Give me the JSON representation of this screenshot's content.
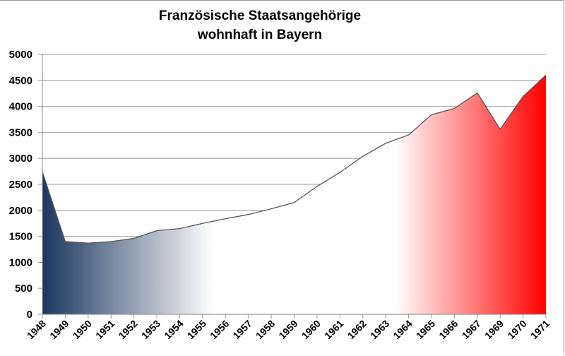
{
  "chart_data": {
    "type": "area",
    "title": "Französische Staatsangehörige",
    "subtitle": "wohnhaft in Bayern",
    "xlabel": "",
    "ylabel": "",
    "ylim": [
      0,
      5000
    ],
    "yticks": [
      0,
      500,
      1000,
      1500,
      2000,
      2500,
      3000,
      3500,
      4000,
      4500,
      5000
    ],
    "grid": true,
    "legend": "none",
    "categories": [
      "1948",
      "1949",
      "1950",
      "1951",
      "1952",
      "1953",
      "1954",
      "1955",
      "1956",
      "1957",
      "1958",
      "1959",
      "1960",
      "1961",
      "1962",
      "1963",
      "1964",
      "1965",
      "1966",
      "1967",
      "1969",
      "1970",
      "1971"
    ],
    "series": [
      {
        "name": "Französische Staatsangehörige",
        "values": [
          2740,
          1400,
          1370,
          1400,
          1460,
          1610,
          1650,
          1750,
          1840,
          1920,
          2030,
          2150,
          2460,
          2730,
          3040,
          3290,
          3450,
          3840,
          3960,
          4260,
          3560,
          4190,
          4600
        ]
      }
    ],
    "fill": {
      "style": "horizontal gradient (French tricolore)",
      "left_color": "#1b365f",
      "middle_color": "#ffffff",
      "right_color": "#ff0000"
    },
    "line_color": "#555555",
    "grid_color": "#b0b0b0"
  }
}
